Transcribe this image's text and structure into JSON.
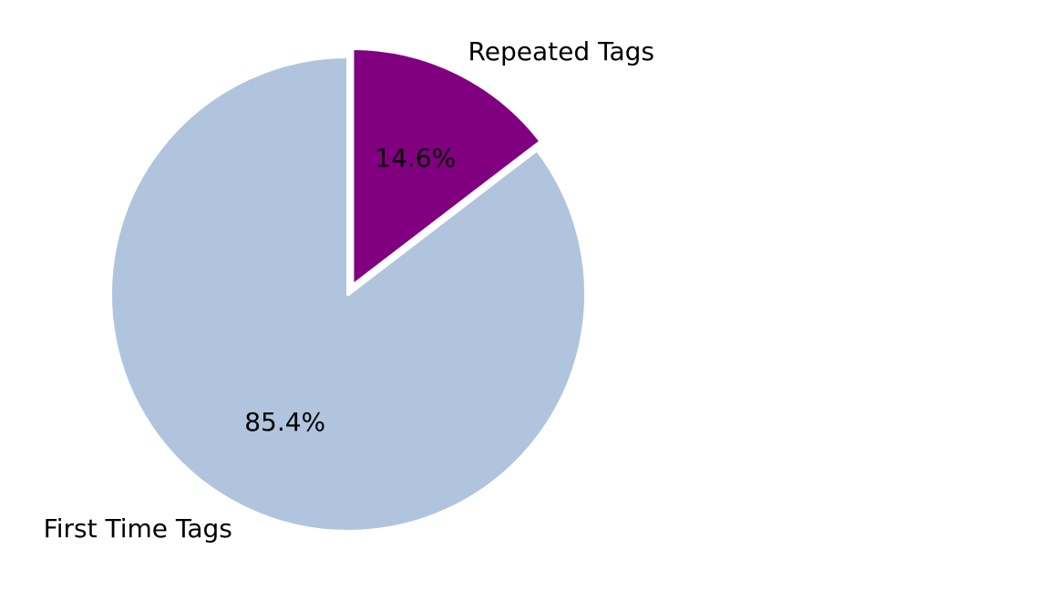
{
  "chart_data": {
    "type": "pie",
    "title": "",
    "start_angle_deg": 90,
    "direction": "clockwise",
    "slices": [
      {
        "label": "Repeated Tags",
        "value": 14.6,
        "pct_text": "14.6%",
        "color": "#800080",
        "exploded": true
      },
      {
        "label": "First Time Tags",
        "value": 85.4,
        "pct_text": "85.4%",
        "color": "#b0c4de",
        "exploded": false
      }
    ],
    "edge_color": "#ffffff",
    "legend": "none"
  }
}
